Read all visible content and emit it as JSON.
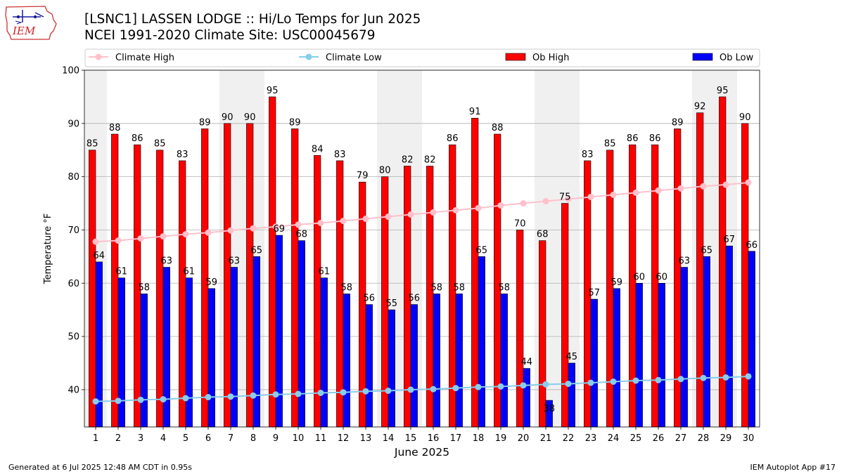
{
  "header": {
    "title_line1": "[LSNC1] LASSEN LODGE :: Hi/Lo Temps for Jun 2025",
    "title_line2": "NCEI 1991-2020 Climate Site: USC00045679",
    "logo_text": "IEM"
  },
  "footer": {
    "generated": "Generated at 6 Jul 2025 12:48 AM CDT in 0.95s",
    "app": "IEM Autoplot App #17"
  },
  "colors": {
    "ob_high": "#ff0000",
    "ob_low": "#0000ff",
    "climate_high": "#ffc0cb",
    "climate_low": "#87ceeb",
    "weekend_shade": "#f0f0f0",
    "grid": "#b0b0b0"
  },
  "chart_data": {
    "type": "bar",
    "title": "[LSNC1] LASSEN LODGE :: Hi/Lo Temps for Jun 2025",
    "xlabel": "June 2025",
    "ylabel": "Temperature °F",
    "ylim": [
      33,
      100
    ],
    "yticks": [
      40,
      50,
      60,
      70,
      80,
      90,
      100
    ],
    "grid": true,
    "legend_position": "top",
    "categories": [
      1,
      2,
      3,
      4,
      5,
      6,
      7,
      8,
      9,
      10,
      11,
      12,
      13,
      14,
      15,
      16,
      17,
      18,
      19,
      20,
      21,
      22,
      23,
      24,
      25,
      26,
      27,
      28,
      29,
      30
    ],
    "shaded_days": [
      1,
      7,
      8,
      14,
      15,
      21,
      22,
      28,
      29
    ],
    "series": [
      {
        "name": "Climate High",
        "kind": "line",
        "values": [
          67.8,
          68.0,
          68.4,
          68.8,
          69.2,
          69.5,
          69.9,
          70.3,
          70.6,
          71.0,
          71.3,
          71.7,
          72.1,
          72.5,
          72.9,
          73.3,
          73.7,
          74.1,
          74.6,
          75.0,
          75.4,
          75.8,
          76.2,
          76.6,
          77.0,
          77.4,
          77.8,
          78.2,
          78.5,
          78.9
        ]
      },
      {
        "name": "Climate Low",
        "kind": "line",
        "values": [
          37.8,
          37.9,
          38.1,
          38.2,
          38.4,
          38.6,
          38.7,
          38.9,
          39.1,
          39.2,
          39.4,
          39.5,
          39.7,
          39.8,
          40.0,
          40.1,
          40.3,
          40.5,
          40.6,
          40.8,
          41.0,
          41.1,
          41.3,
          41.5,
          41.7,
          41.8,
          42.0,
          42.2,
          42.3,
          42.5
        ]
      },
      {
        "name": "Ob High",
        "kind": "bar",
        "values": [
          85,
          88,
          86,
          85,
          83,
          89,
          90,
          90,
          95,
          89,
          84,
          83,
          79,
          80,
          82,
          82,
          86,
          91,
          88,
          70,
          68,
          75,
          83,
          85,
          86,
          86,
          89,
          92,
          95,
          90
        ]
      },
      {
        "name": "Ob Low",
        "kind": "bar",
        "values": [
          64,
          61,
          58,
          63,
          61,
          59,
          63,
          65,
          69,
          68,
          61,
          58,
          56,
          55,
          56,
          58,
          58,
          65,
          58,
          44,
          38,
          45,
          57,
          59,
          60,
          60,
          63,
          65,
          67,
          66
        ]
      }
    ]
  }
}
